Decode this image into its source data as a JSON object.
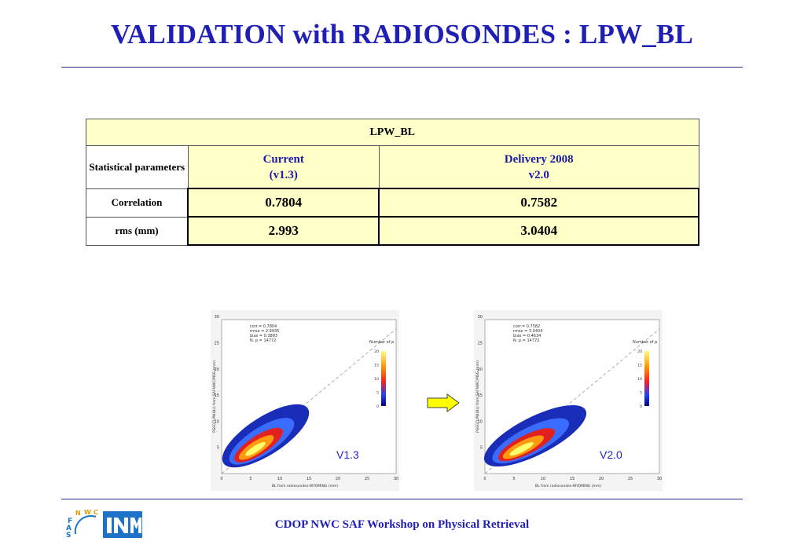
{
  "slide": {
    "title": "VALIDATION with RADIOSONDES : LPW_BL",
    "footer": "CDOP NWC SAF Workshop on Physical Retrieval"
  },
  "table": {
    "header": "LPW_BL",
    "param_label": "Statistical parameters",
    "col1_line1": "Current",
    "col1_line2": "(v1.3)",
    "col2_line1": "Delivery 2008",
    "col2_line2": "v2.0",
    "rows": [
      {
        "label": "Correlation",
        "current": "0.7804",
        "delivery": "0.7582"
      },
      {
        "label": "rms (mm)",
        "current": "2.993",
        "delivery": "3.0404"
      }
    ]
  },
  "plots": [
    {
      "version_label": "V1.3",
      "stats": [
        "corr.= 0.7804",
        "rmse = 2.9935",
        "bias = 0.3883",
        "N. p.=   14772"
      ],
      "x_axis": "BL from radiosondes-WYOMING (mm)",
      "y_axis": "PGE07LPW(BL) from SAFNWC/MSG (mm)",
      "colorbar_title": "Number of p",
      "colorbar_ticks": [
        "20",
        "15",
        "10",
        "5",
        "0"
      ],
      "ticks": [
        "0",
        "5",
        "10",
        "15",
        "20",
        "25",
        "30"
      ]
    },
    {
      "version_label": "V2.0",
      "stats": [
        "corr.= 0.7582",
        "rmse = 3.0404",
        "bias =-0.4634",
        "N. p.=   14772"
      ],
      "x_axis": "BL from radiosondes-WYOMING (mm)",
      "y_axis": "PGE07LPW(BL) from SAFNWC/MSG (mm)",
      "colorbar_title": "Number of p",
      "colorbar_ticks": [
        "20",
        "15",
        "10",
        "5",
        "0"
      ],
      "ticks": [
        "0",
        "5",
        "10",
        "15",
        "20",
        "25",
        "30"
      ]
    }
  ],
  "logos": {
    "saf_letters": [
      "S",
      "A",
      "F",
      "N",
      "W",
      "C"
    ],
    "inm_text": "INM"
  },
  "colors": {
    "title_blue": "#1f1fb4",
    "table_yellow": "#ffffc8",
    "arrow_yellow": "#ffff00"
  }
}
